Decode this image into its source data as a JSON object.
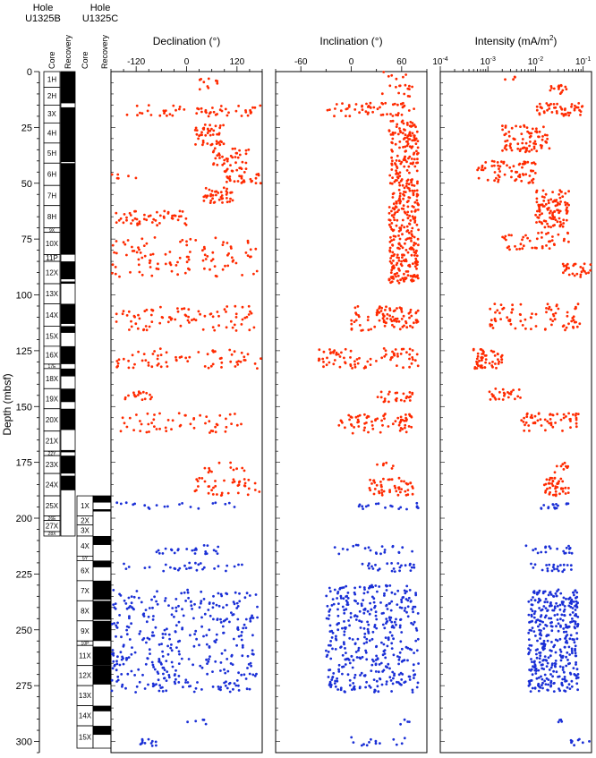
{
  "holes": [
    {
      "title_line1": "Hole",
      "title_line2": "U1325B"
    },
    {
      "title_line1": "Hole",
      "title_line2": "U1325C"
    }
  ],
  "column_labels": {
    "core": "Core",
    "recovery": "Recovery"
  },
  "depth_axis": {
    "label": "Depth (mbsf)",
    "ticks": [
      0,
      25,
      50,
      75,
      100,
      125,
      150,
      175,
      200,
      225,
      250,
      275,
      300
    ],
    "range": [
      0,
      305
    ]
  },
  "colors": {
    "hole_b": "#ff2a00",
    "hole_c": "#1a2fd6",
    "recovery": "#000000"
  },
  "cores_b": [
    {
      "name": "1H",
      "top": 0,
      "bottom": 7
    },
    {
      "name": "2H",
      "top": 7,
      "bottom": 15
    },
    {
      "name": "3X",
      "top": 15,
      "bottom": 23
    },
    {
      "name": "4H",
      "top": 23,
      "bottom": 32
    },
    {
      "name": "5H",
      "top": 32,
      "bottom": 41
    },
    {
      "name": "6H",
      "top": 41,
      "bottom": 51
    },
    {
      "name": "7H",
      "top": 51,
      "bottom": 60
    },
    {
      "name": "8H",
      "top": 60,
      "bottom": 70
    },
    {
      "name": "9X",
      "top": 70,
      "bottom": 72
    },
    {
      "name": "10X",
      "top": 72,
      "bottom": 82
    },
    {
      "name": "11P",
      "top": 82,
      "bottom": 85
    },
    {
      "name": "12X",
      "top": 85,
      "bottom": 95
    },
    {
      "name": "13X",
      "top": 95,
      "bottom": 104
    },
    {
      "name": "14X",
      "top": 104,
      "bottom": 114
    },
    {
      "name": "15X",
      "top": 114,
      "bottom": 123
    },
    {
      "name": "16X",
      "top": 123,
      "bottom": 131
    },
    {
      "name": "17E",
      "top": 131,
      "bottom": 133
    },
    {
      "name": "18X",
      "top": 133,
      "bottom": 142
    },
    {
      "name": "19X",
      "top": 142,
      "bottom": 151
    },
    {
      "name": "20X",
      "top": 151,
      "bottom": 161
    },
    {
      "name": "21X",
      "top": 161,
      "bottom": 170
    },
    {
      "name": "22Y",
      "top": 170,
      "bottom": 172
    },
    {
      "name": "23X",
      "top": 172,
      "bottom": 180
    },
    {
      "name": "24X",
      "top": 180,
      "bottom": 190
    },
    {
      "name": "25X",
      "top": 190,
      "bottom": 199
    },
    {
      "name": "26E",
      "top": 199,
      "bottom": 201
    },
    {
      "name": "27X",
      "top": 201,
      "bottom": 206
    },
    {
      "name": "28X",
      "top": 206,
      "bottom": 208
    }
  ],
  "recovery_b": [
    [
      0,
      14.2
    ],
    [
      16.0,
      40.5
    ],
    [
      41.0,
      82.0
    ],
    [
      85.0,
      93.0
    ],
    [
      94.0,
      95.0
    ],
    [
      104.0,
      113.0
    ],
    [
      114.0,
      117.0
    ],
    [
      123.0,
      131.0
    ],
    [
      133.0,
      136.5
    ],
    [
      142.0,
      148.0
    ],
    [
      151.0,
      160.5
    ],
    [
      169.5,
      170.5
    ],
    [
      172.0,
      180.0
    ],
    [
      181.0,
      187.5
    ]
  ],
  "cores_c": [
    {
      "name": "1X",
      "top": 190,
      "bottom": 199
    },
    {
      "name": "2X",
      "top": 199,
      "bottom": 203
    },
    {
      "name": "3X",
      "top": 203,
      "bottom": 208
    },
    {
      "name": "4X",
      "top": 208,
      "bottom": 217
    },
    {
      "name": "5Y",
      "top": 217,
      "bottom": 219
    },
    {
      "name": "6X",
      "top": 219,
      "bottom": 228
    },
    {
      "name": "7X",
      "top": 228,
      "bottom": 237
    },
    {
      "name": "8X",
      "top": 237,
      "bottom": 246
    },
    {
      "name": "9X",
      "top": 246,
      "bottom": 255
    },
    {
      "name": "10P",
      "top": 255,
      "bottom": 257
    },
    {
      "name": "11X",
      "top": 257,
      "bottom": 266
    },
    {
      "name": "12X",
      "top": 266,
      "bottom": 275
    },
    {
      "name": "13X",
      "top": 275,
      "bottom": 284
    },
    {
      "name": "14X",
      "top": 284,
      "bottom": 293
    },
    {
      "name": "15X",
      "top": 293,
      "bottom": 303
    }
  ],
  "recovery_c": [
    [
      190.0,
      193.0
    ],
    [
      196.0,
      197.0
    ],
    [
      208.0,
      212.0
    ],
    [
      219.0,
      222.0
    ],
    [
      228.0,
      236.5
    ],
    [
      237.0,
      245.5
    ],
    [
      246.0,
      255.0
    ],
    [
      257.5,
      266.0
    ],
    [
      266.0,
      274.5
    ],
    [
      284.0,
      286.5
    ],
    [
      293.0,
      297.0
    ]
  ],
  "chart_data": [
    {
      "type": "scatter",
      "title": "Declination (°)",
      "xlim": [
        -180,
        180
      ],
      "ticks": [
        -120,
        0,
        120
      ],
      "tick_labels": [
        "-120",
        "0",
        "120"
      ],
      "scale": "linear",
      "series": [
        {
          "hole": "U1325B",
          "clusters": [
            {
              "depth": [
                3,
                8
              ],
              "x": [
                30,
                80
              ],
              "n": 10
            },
            {
              "depth": [
                15,
                20
              ],
              "x": [
                -150,
                180
              ],
              "n": 55
            },
            {
              "depth": [
                23,
                33
              ],
              "x": [
                20,
                90
              ],
              "n": 45
            },
            {
              "depth": [
                34,
                42
              ],
              "x": [
                60,
                150
              ],
              "n": 35
            },
            {
              "depth": [
                43,
                50
              ],
              "x": [
                90,
                180
              ],
              "n": 40
            },
            {
              "depth": [
                45,
                48
              ],
              "x": [
                -180,
                -120
              ],
              "n": 6
            },
            {
              "depth": [
                52,
                59
              ],
              "x": [
                40,
                110
              ],
              "n": 40
            },
            {
              "depth": [
                62,
                69
              ],
              "x": [
                -170,
                0
              ],
              "n": 50
            },
            {
              "depth": [
                74,
                92
              ],
              "x": [
                -180,
                170
              ],
              "n": 110
            },
            {
              "depth": [
                105,
                116
              ],
              "x": [
                -170,
                170
              ],
              "n": 85
            },
            {
              "depth": [
                124,
                133
              ],
              "x": [
                -170,
                180
              ],
              "n": 70
            },
            {
              "depth": [
                143,
                147
              ],
              "x": [
                -150,
                -80
              ],
              "n": 18
            },
            {
              "depth": [
                153,
                162
              ],
              "x": [
                -160,
                140
              ],
              "n": 55
            },
            {
              "depth": [
                175,
                180
              ],
              "x": [
                40,
                150
              ],
              "n": 12
            },
            {
              "depth": [
                182,
                190
              ],
              "x": [
                20,
                180
              ],
              "n": 40
            }
          ]
        },
        {
          "hole": "U1325C",
          "clusters": [
            {
              "depth": [
                193,
                196
              ],
              "x": [
                -180,
                140
              ],
              "n": 20
            },
            {
              "depth": [
                212,
                216
              ],
              "x": [
                -80,
                80
              ],
              "n": 25
            },
            {
              "depth": [
                220,
                224
              ],
              "x": [
                -160,
                140
              ],
              "n": 30
            },
            {
              "depth": [
                232,
                278
              ],
              "x": [
                -180,
                170
              ],
              "n": 380
            },
            {
              "depth": [
                290,
                294
              ],
              "x": [
                -20,
                100
              ],
              "n": 5
            },
            {
              "depth": [
                299,
                302
              ],
              "x": [
                -120,
                -70
              ],
              "n": 12
            }
          ]
        }
      ]
    },
    {
      "type": "scatter",
      "title": "Inclination (°)",
      "xlim": [
        -90,
        90
      ],
      "ticks": [
        -60,
        0,
        60
      ],
      "tick_labels": [
        "-60",
        "0",
        "60"
      ],
      "scale": "linear",
      "series": [
        {
          "hole": "U1325B",
          "clusters": [
            {
              "depth": [
                0,
                12
              ],
              "x": [
                35,
                75
              ],
              "n": 20
            },
            {
              "depth": [
                14,
                20
              ],
              "x": [
                -30,
                75
              ],
              "n": 55
            },
            {
              "depth": [
                22,
                95
              ],
              "x": [
                45,
                80
              ],
              "n": 400
            },
            {
              "depth": [
                105,
                116
              ],
              "x": [
                0,
                80
              ],
              "n": 90
            },
            {
              "depth": [
                124,
                133
              ],
              "x": [
                -40,
                80
              ],
              "n": 80
            },
            {
              "depth": [
                143,
                148
              ],
              "x": [
                30,
                75
              ],
              "n": 25
            },
            {
              "depth": [
                153,
                162
              ],
              "x": [
                -15,
                75
              ],
              "n": 70
            },
            {
              "depth": [
                175,
                178
              ],
              "x": [
                30,
                50
              ],
              "n": 6
            },
            {
              "depth": [
                182,
                190
              ],
              "x": [
                20,
                75
              ],
              "n": 50
            }
          ]
        },
        {
          "hole": "U1325C",
          "clusters": [
            {
              "depth": [
                193,
                196
              ],
              "x": [
                5,
                80
              ],
              "n": 18
            },
            {
              "depth": [
                212,
                216
              ],
              "x": [
                -20,
                75
              ],
              "n": 22
            },
            {
              "depth": [
                220,
                224
              ],
              "x": [
                10,
                75
              ],
              "n": 25
            },
            {
              "depth": [
                230,
                278
              ],
              "x": [
                -30,
                80
              ],
              "n": 400
            },
            {
              "depth": [
                290,
                293
              ],
              "x": [
                55,
                70
              ],
              "n": 4
            },
            {
              "depth": [
                298,
                302
              ],
              "x": [
                0,
                70
              ],
              "n": 14
            }
          ]
        }
      ]
    },
    {
      "type": "scatter",
      "title": "Intensity (mA/m²)",
      "title_main": "Intensity (mA/m",
      "title_sup": "2",
      "title_end": ")",
      "xlim": [
        0.0001,
        0.15
      ],
      "ticks": [
        0.0001,
        0.001,
        0.01,
        0.1
      ],
      "tick_base": "10",
      "tick_exponents": [
        "-4",
        "-3",
        "-2",
        "-1"
      ],
      "scale": "log",
      "series": [
        {
          "hole": "U1325B",
          "clusters": [
            {
              "depth": [
                2,
                4
              ],
              "x": [
                0.002,
                0.004
              ],
              "n": 4
            },
            {
              "depth": [
                6,
                10
              ],
              "x": [
                0.02,
                0.05
              ],
              "n": 15
            },
            {
              "depth": [
                14,
                20
              ],
              "x": [
                0.01,
                0.1
              ],
              "n": 50
            },
            {
              "depth": [
                24,
                36
              ],
              "x": [
                0.002,
                0.02
              ],
              "n": 80
            },
            {
              "depth": [
                40,
                50
              ],
              "x": [
                0.0006,
                0.01
              ],
              "n": 70
            },
            {
              "depth": [
                53,
                70
              ],
              "x": [
                0.01,
                0.05
              ],
              "n": 100
            },
            {
              "depth": [
                72,
                80
              ],
              "x": [
                0.002,
                0.05
              ],
              "n": 45
            },
            {
              "depth": [
                86,
                92
              ],
              "x": [
                0.03,
                0.15
              ],
              "n": 30
            },
            {
              "depth": [
                104,
                116
              ],
              "x": [
                0.001,
                0.1
              ],
              "n": 80
            },
            {
              "depth": [
                124,
                133
              ],
              "x": [
                0.0005,
                0.002
              ],
              "n": 55
            },
            {
              "depth": [
                142,
                147
              ],
              "x": [
                0.001,
                0.005
              ],
              "n": 25
            },
            {
              "depth": [
                153,
                161
              ],
              "x": [
                0.005,
                0.08
              ],
              "n": 55
            },
            {
              "depth": [
                175,
                180
              ],
              "x": [
                0.02,
                0.05
              ],
              "n": 10
            },
            {
              "depth": [
                182,
                190
              ],
              "x": [
                0.015,
                0.05
              ],
              "n": 45
            }
          ]
        },
        {
          "hole": "U1325C",
          "clusters": [
            {
              "depth": [
                193,
                196
              ],
              "x": [
                0.012,
                0.05
              ],
              "n": 15
            },
            {
              "depth": [
                212,
                216
              ],
              "x": [
                0.005,
                0.06
              ],
              "n": 20
            },
            {
              "depth": [
                220,
                224
              ],
              "x": [
                0.008,
                0.06
              ],
              "n": 22
            },
            {
              "depth": [
                232,
                278
              ],
              "x": [
                0.007,
                0.08
              ],
              "n": 380
            },
            {
              "depth": [
                290,
                293
              ],
              "x": [
                0.03,
                0.05
              ],
              "n": 4
            },
            {
              "depth": [
                298,
                302
              ],
              "x": [
                0.05,
                0.15
              ],
              "n": 8
            }
          ]
        }
      ]
    }
  ]
}
